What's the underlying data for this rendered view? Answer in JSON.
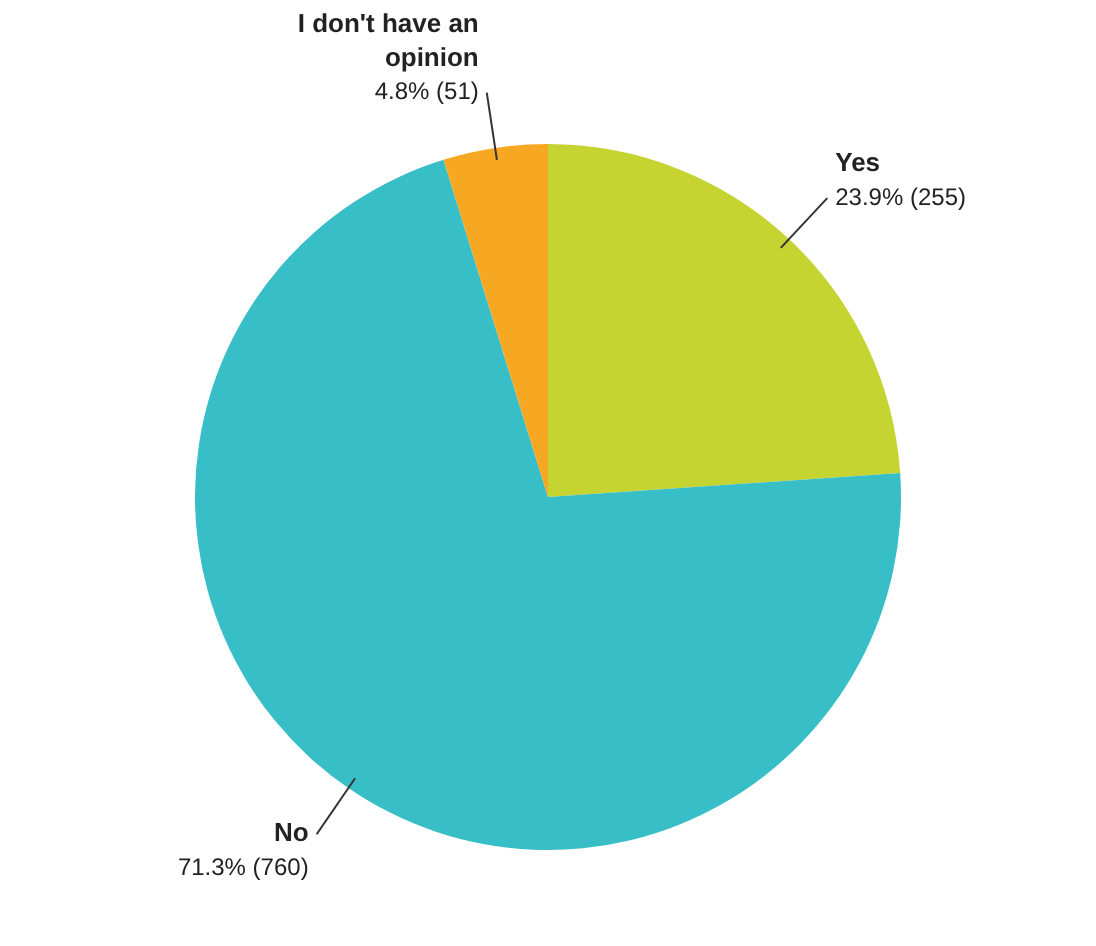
{
  "chart_data": {
    "type": "pie",
    "categories": [
      "Yes",
      "No",
      "I don't have an opinion"
    ],
    "values": [
      255,
      760,
      51
    ],
    "colors": [
      "#c5d431",
      "#38bec6",
      "#f7a823"
    ],
    "value_labels": [
      "23.9% (255)",
      "71.3% (760)",
      "4.8% (51)"
    ],
    "legend": false
  }
}
